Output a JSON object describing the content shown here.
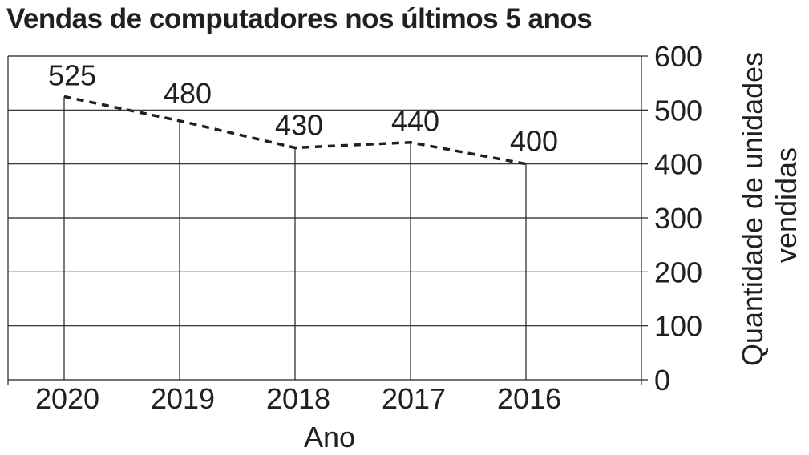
{
  "chart_data": {
    "type": "line",
    "title": "Vendas de computadores nos últimos 5 anos",
    "xlabel": "Ano",
    "ylabel": "Quantidade de unidades vendidas",
    "ylabel_lines": [
      "Quantidade de unidades",
      "vendidas"
    ],
    "categories": [
      "2020",
      "2019",
      "2018",
      "2017",
      "2016"
    ],
    "series": [
      {
        "values": [
          525,
          480,
          430,
          440,
          400
        ],
        "line_style": "dashed"
      }
    ],
    "data_labels": [
      "525",
      "480",
      "430",
      "440",
      "400"
    ],
    "y_ticks": [
      0,
      100,
      200,
      300,
      400,
      500,
      600
    ],
    "ylim": [
      0,
      600
    ],
    "y_axis_side": "right",
    "grid": true,
    "drop_lines": true,
    "colors": {
      "line": "#231f20",
      "grid": "#231f20",
      "text": "#231f20"
    }
  }
}
